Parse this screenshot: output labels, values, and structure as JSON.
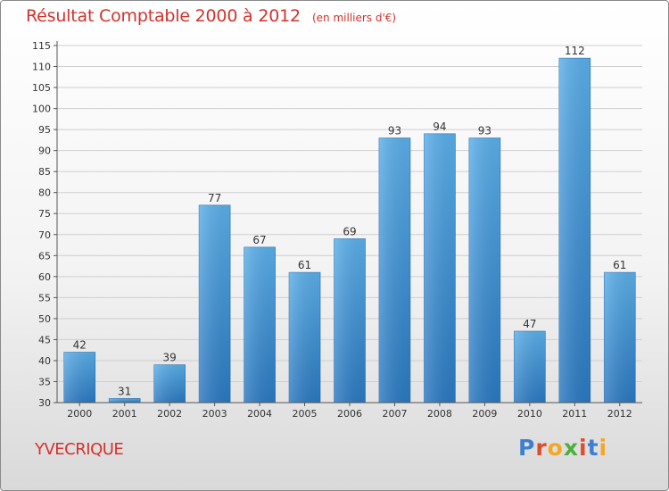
{
  "header": {
    "title": "Résultat Comptable 2000 à 2012",
    "subtitle": "(en milliers d'€)"
  },
  "footer": {
    "commune": "YVECRIQUE",
    "logo_text": "Proxiti",
    "logo_colors": [
      "#3d7fd1",
      "#e04b2c",
      "#f5a623",
      "#4caf3d",
      "#e04b2c",
      "#3d7fd1",
      "#f5a623"
    ]
  },
  "chart_data": {
    "type": "bar",
    "categories": [
      "2000",
      "2001",
      "2002",
      "2003",
      "2004",
      "2005",
      "2006",
      "2007",
      "2008",
      "2009",
      "2010",
      "2011",
      "2012"
    ],
    "values": [
      42,
      31,
      39,
      77,
      67,
      61,
      69,
      93,
      94,
      93,
      47,
      112,
      61
    ],
    "data_labels": [
      "42",
      "31",
      "39",
      "77",
      "67",
      "61",
      "69",
      "93",
      "94",
      "93",
      "47",
      "112",
      "61"
    ],
    "ylim": [
      30,
      115
    ],
    "yticks": [
      30,
      35,
      40,
      45,
      50,
      55,
      60,
      65,
      70,
      75,
      80,
      85,
      90,
      95,
      100,
      105,
      110,
      115
    ],
    "grid": true,
    "bar_color": "#3a8fd6",
    "xlabel": "",
    "ylabel": ""
  }
}
